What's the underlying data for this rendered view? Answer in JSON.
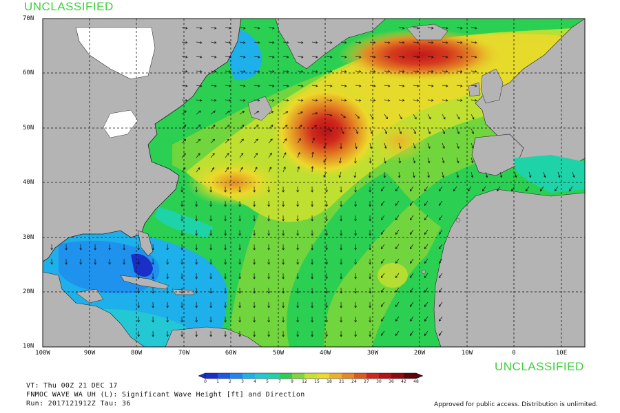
{
  "classification": {
    "top": "UNCLASSIFIED",
    "bottom": "UNCLASSIFIED"
  },
  "map": {
    "lat_labels": [
      "70N",
      "60N",
      "50N",
      "40N",
      "30N",
      "20N",
      "10N"
    ],
    "lon_labels": [
      "100W",
      "90W",
      "80W",
      "70W",
      "60W",
      "50W",
      "40W",
      "30W",
      "20W",
      "10W",
      "0",
      "10E"
    ],
    "lat_range": [
      10,
      70
    ],
    "lon_range": [
      -100,
      15
    ],
    "land_color": "#b4b4b4",
    "peak_cells": [
      {
        "name": "labrador-sea-peak",
        "lat": 48,
        "lon": -40,
        "value_ft": 36
      },
      {
        "name": "north-atlantic-peak",
        "lat": 63,
        "lon": -23,
        "value_ft": 27
      }
    ]
  },
  "colorbar": {
    "ticks": [
      "0",
      "1",
      "2",
      "3",
      "4",
      "5",
      "7",
      "9",
      "12",
      "15",
      "18",
      "21",
      "24",
      "27",
      "30",
      "36",
      "42",
      "48"
    ],
    "colors": [
      "#1a2fc8",
      "#1e56e6",
      "#1f86f0",
      "#1eb0ea",
      "#24c8d4",
      "#1fd3a8",
      "#2bcf52",
      "#7ed63a",
      "#c8e030",
      "#ecd92a",
      "#eab22a",
      "#e48a25",
      "#dc5a20",
      "#d0281c",
      "#b41416",
      "#8e0c10",
      "#60060a"
    ]
  },
  "info": {
    "line1": "VT: Thu 00Z 21 DEC 17",
    "line2": "FNMOC WAVE WA UH (L): Significant Wave Height [ft] and Direction",
    "line3": "Run: 2017121912Z Tau: 36"
  },
  "approval": "Approved for public access. Distribution is unlimited."
}
